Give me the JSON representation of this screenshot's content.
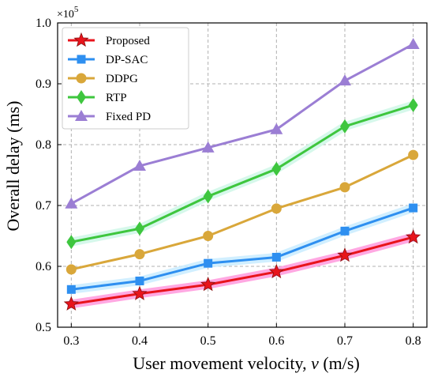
{
  "chart_data": {
    "type": "line",
    "xlabel_prefix": "User movement velocity, ",
    "xlabel_var": "v",
    "xlabel_suffix": " (m/s)",
    "ylabel": "Overall delay (ms)",
    "y_multiplier_base": "×10",
    "y_multiplier_exp": "5",
    "x": [
      0.3,
      0.4,
      0.5,
      0.6,
      0.7,
      0.8
    ],
    "x_tick_labels": [
      "0.3",
      "0.4",
      "0.5",
      "0.6",
      "0.7",
      "0.8"
    ],
    "y_ticks": [
      0.5,
      0.6,
      0.7,
      0.8,
      0.9,
      1.0
    ],
    "y_tick_labels": [
      "0.5",
      "0.6",
      "0.7",
      "0.8",
      "0.9",
      "1.0"
    ],
    "xlim": [
      0.28,
      0.82
    ],
    "ylim": [
      0.5,
      1.0
    ],
    "grid": true,
    "legend_position": "top-left",
    "series": [
      {
        "name": "Proposed",
        "color": "#e8141c",
        "marker": "star",
        "glow": "#ff99dd",
        "values": [
          0.538,
          0.555,
          0.57,
          0.591,
          0.618,
          0.648
        ]
      },
      {
        "name": "DP-SAC",
        "color": "#2e8ff0",
        "marker": "square",
        "glow": "#c9ecff",
        "values": [
          0.562,
          0.576,
          0.605,
          0.615,
          0.658,
          0.696
        ]
      },
      {
        "name": "DDPG",
        "color": "#d9a73a",
        "marker": "circle",
        "glow": null,
        "values": [
          0.595,
          0.62,
          0.65,
          0.695,
          0.73,
          0.783
        ]
      },
      {
        "name": "RTP",
        "color": "#3ec63e",
        "marker": "diamond",
        "glow": "#cff7e8",
        "values": [
          0.64,
          0.662,
          0.715,
          0.76,
          0.83,
          0.865
        ]
      },
      {
        "name": "Fixed PD",
        "color": "#9b7ed4",
        "marker": "triangle",
        "glow": null,
        "values": [
          0.703,
          0.765,
          0.795,
          0.825,
          0.905,
          0.965
        ]
      }
    ]
  }
}
